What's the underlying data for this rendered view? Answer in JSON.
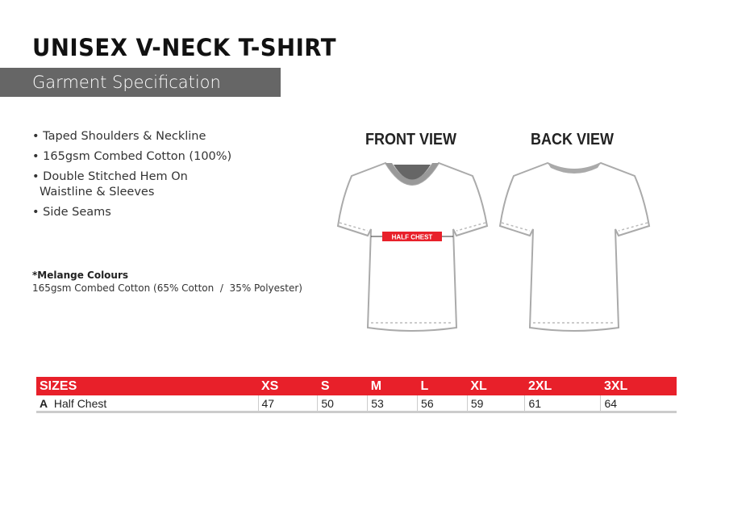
{
  "title": "UNISEX V-NECK T-SHIRT",
  "subtitle": "Garment Specification",
  "features": [
    "Taped Shoulders & Neckline",
    "165gsm Combed Cotton (100%)",
    "Double Stitched Hem On Waistline & Sleeves",
    "Side Seams"
  ],
  "melange": {
    "heading": "*Melange Colours",
    "text": "165gsm Combed Cotton (65% Cotton  /  35% Polyester)"
  },
  "views": {
    "front": "FRONT VIEW",
    "back": "BACK VIEW",
    "measure_label": "HALF CHEST"
  },
  "accent_color": "#e8202a",
  "table": {
    "headers": [
      "SIZES",
      "XS",
      "S",
      "M",
      "L",
      "XL",
      "2XL",
      "3XL"
    ],
    "rows": [
      {
        "code": "A",
        "label": "Half Chest",
        "values": [
          "47",
          "50",
          "53",
          "56",
          "59",
          "61",
          "64"
        ]
      }
    ]
  }
}
